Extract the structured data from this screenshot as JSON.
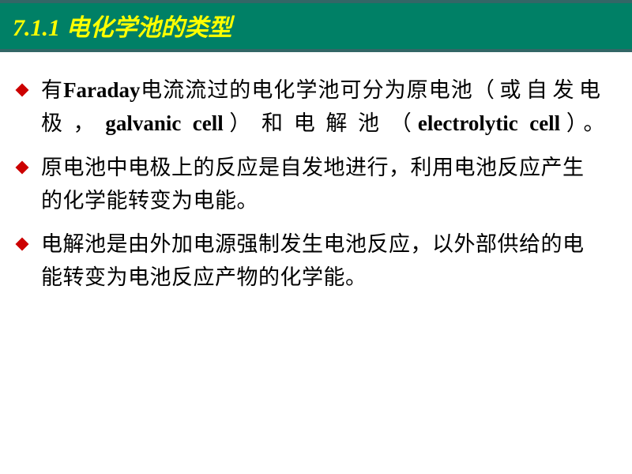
{
  "colors": {
    "title_bg": "#008066",
    "title_border": "#336666",
    "title_text": "#ffff00",
    "bullet": "#cc0000",
    "body_text": "#000000",
    "page_bg": "#ffffff"
  },
  "typography": {
    "title_fontsize": 30,
    "body_fontsize": 27
  },
  "title": "7.1.1 电化学池的类型",
  "bullets": [
    {
      "html": "有<span class='western'>Faraday</span>电流流过的电化学池可分为原电池<span class='spaced'>（或自发电极，</span><span class='western'>galvanic cell</span><span class='spaced'>）和电解池</span>（<span class='western'>electrolytic cell</span>）。",
      "justify": true
    },
    {
      "html": "原电池中电极上的反应是自发地进行，利用电池反应产生的化学能转变为电能。",
      "justify": false
    },
    {
      "html": "电解池是由外加电源强制发生电池反应，以外部供给的电能转变为电池反应产物的化学能。",
      "justify": false
    }
  ]
}
